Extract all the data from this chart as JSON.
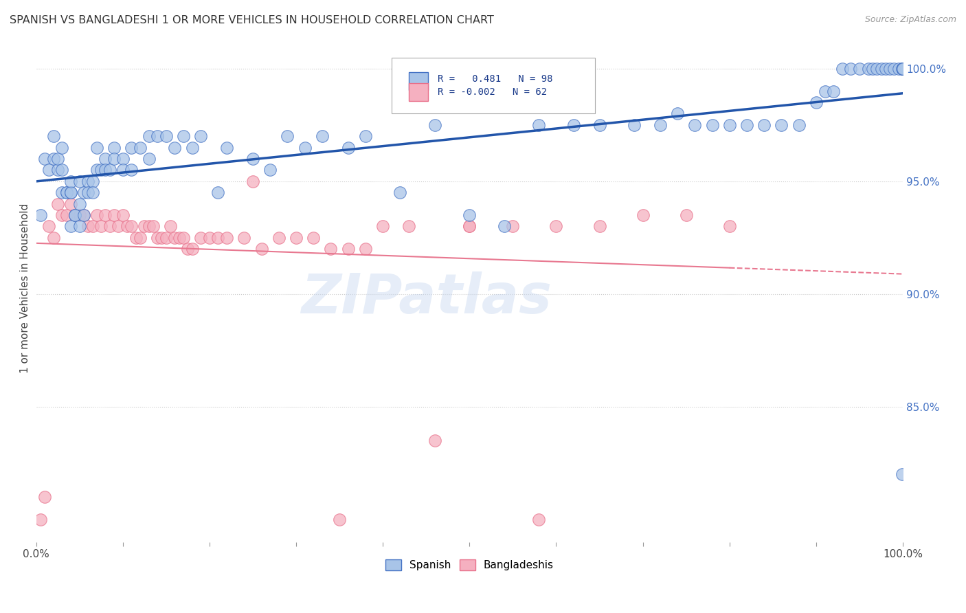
{
  "title": "SPANISH VS BANGLADESHI 1 OR MORE VEHICLES IN HOUSEHOLD CORRELATION CHART",
  "source": "Source: ZipAtlas.com",
  "ylabel": "1 or more Vehicles in Household",
  "ytick_labels": [
    "100.0%",
    "95.0%",
    "90.0%",
    "85.0%"
  ],
  "ytick_values": [
    1.0,
    0.95,
    0.9,
    0.85
  ],
  "xlim": [
    0.0,
    1.0
  ],
  "ylim": [
    0.79,
    1.015
  ],
  "spanish_color": "#a8c4e8",
  "bangladeshi_color": "#f5b0c0",
  "spanish_edge_color": "#4472c4",
  "bangladeshi_edge_color": "#e8708a",
  "spanish_line_color": "#2255aa",
  "bangladeshi_line_color": "#e87890",
  "watermark": "ZIPatlas",
  "spanish_x": [
    0.005,
    0.01,
    0.015,
    0.02,
    0.02,
    0.025,
    0.025,
    0.03,
    0.03,
    0.03,
    0.035,
    0.035,
    0.04,
    0.04,
    0.04,
    0.04,
    0.045,
    0.045,
    0.05,
    0.05,
    0.05,
    0.055,
    0.055,
    0.06,
    0.06,
    0.065,
    0.065,
    0.07,
    0.07,
    0.075,
    0.08,
    0.08,
    0.085,
    0.09,
    0.09,
    0.1,
    0.1,
    0.11,
    0.11,
    0.12,
    0.13,
    0.13,
    0.14,
    0.15,
    0.16,
    0.17,
    0.18,
    0.19,
    0.21,
    0.22,
    0.25,
    0.27,
    0.29,
    0.31,
    0.33,
    0.36,
    0.38,
    0.42,
    0.46,
    0.5,
    0.54,
    0.58,
    0.62,
    0.65,
    0.69,
    0.72,
    0.74,
    0.76,
    0.78,
    0.8,
    0.82,
    0.84,
    0.86,
    0.88,
    0.9,
    0.91,
    0.92,
    0.93,
    0.94,
    0.95,
    0.96,
    0.965,
    0.97,
    0.975,
    0.98,
    0.985,
    0.99,
    0.995,
    0.999,
    0.999,
    1.0,
    1.0,
    1.0,
    1.0,
    1.0,
    1.0,
    1.0,
    1.0
  ],
  "spanish_y": [
    0.935,
    0.96,
    0.955,
    0.97,
    0.96,
    0.955,
    0.96,
    0.965,
    0.955,
    0.945,
    0.945,
    0.945,
    0.945,
    0.945,
    0.95,
    0.93,
    0.935,
    0.935,
    0.95,
    0.94,
    0.93,
    0.945,
    0.935,
    0.95,
    0.945,
    0.95,
    0.945,
    0.965,
    0.955,
    0.955,
    0.96,
    0.955,
    0.955,
    0.965,
    0.96,
    0.96,
    0.955,
    0.965,
    0.955,
    0.965,
    0.97,
    0.96,
    0.97,
    0.97,
    0.965,
    0.97,
    0.965,
    0.97,
    0.945,
    0.965,
    0.96,
    0.955,
    0.97,
    0.965,
    0.97,
    0.965,
    0.97,
    0.945,
    0.975,
    0.935,
    0.93,
    0.975,
    0.975,
    0.975,
    0.975,
    0.975,
    0.98,
    0.975,
    0.975,
    0.975,
    0.975,
    0.975,
    0.975,
    0.975,
    0.985,
    0.99,
    0.99,
    1.0,
    1.0,
    1.0,
    1.0,
    1.0,
    1.0,
    1.0,
    1.0,
    1.0,
    1.0,
    1.0,
    1.0,
    0.82,
    1.0,
    1.0,
    1.0,
    1.0,
    1.0,
    1.0,
    1.0,
    1.0
  ],
  "bangladeshi_x": [
    0.005,
    0.01,
    0.015,
    0.02,
    0.025,
    0.03,
    0.035,
    0.04,
    0.045,
    0.05,
    0.055,
    0.06,
    0.065,
    0.07,
    0.075,
    0.08,
    0.085,
    0.09,
    0.095,
    0.1,
    0.105,
    0.11,
    0.115,
    0.12,
    0.125,
    0.13,
    0.135,
    0.14,
    0.145,
    0.15,
    0.155,
    0.16,
    0.165,
    0.17,
    0.175,
    0.18,
    0.19,
    0.2,
    0.21,
    0.22,
    0.24,
    0.26,
    0.28,
    0.3,
    0.32,
    0.34,
    0.36,
    0.38,
    0.4,
    0.43,
    0.46,
    0.5,
    0.55,
    0.58,
    0.6,
    0.65,
    0.7,
    0.75,
    0.8,
    0.5,
    0.25,
    0.35
  ],
  "bangladeshi_y": [
    0.8,
    0.81,
    0.93,
    0.925,
    0.94,
    0.935,
    0.935,
    0.94,
    0.935,
    0.935,
    0.935,
    0.93,
    0.93,
    0.935,
    0.93,
    0.935,
    0.93,
    0.935,
    0.93,
    0.935,
    0.93,
    0.93,
    0.925,
    0.925,
    0.93,
    0.93,
    0.93,
    0.925,
    0.925,
    0.925,
    0.93,
    0.925,
    0.925,
    0.925,
    0.92,
    0.92,
    0.925,
    0.925,
    0.925,
    0.925,
    0.925,
    0.92,
    0.925,
    0.925,
    0.925,
    0.92,
    0.92,
    0.92,
    0.93,
    0.93,
    0.835,
    0.93,
    0.93,
    0.8,
    0.93,
    0.93,
    0.935,
    0.935,
    0.93,
    0.93,
    0.95,
    0.8
  ]
}
